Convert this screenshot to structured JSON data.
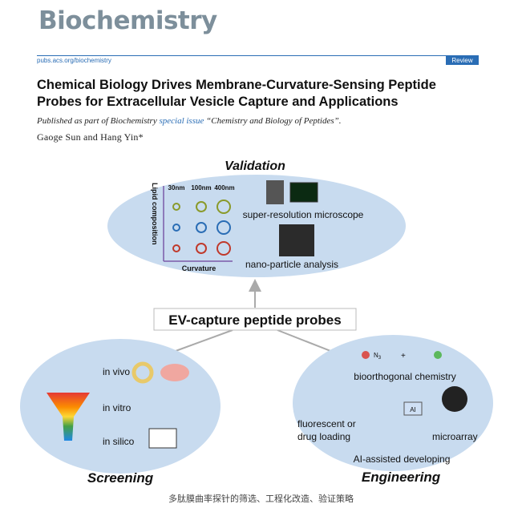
{
  "header": {
    "journal": "Biochemistry",
    "url": "pubs.acs.org/biochemistry",
    "badge": "Review"
  },
  "article": {
    "title": "Chemical Biology Drives Membrane-Curvature-Sensing Peptide Probes for Extracellular Vesicle Capture and Applications",
    "published_prefix": "Published as part of Biochemistry",
    "published_link": "special issue",
    "published_suffix": "“Chemistry and Biology of Peptides”.",
    "authors": "Gaoge Sun and Hang Yin*"
  },
  "figure": {
    "validation": {
      "title": "Validation",
      "y_axis": "Lipid composition",
      "sizes": [
        "30nm",
        "100nm",
        "400nm"
      ],
      "x_axis": "Curvature",
      "microscope": "super-resolution microscope",
      "nta": "nano-particle analysis"
    },
    "center": "EV-capture peptide probes",
    "screening": {
      "title": "Screening",
      "items": [
        "in vivo",
        "in vitro",
        "in silico"
      ]
    },
    "engineering": {
      "title": "Engineering",
      "azide": "N",
      "azide_sub": "3",
      "plus": "+",
      "bioorthogonal": "bioorthogonal chemistry",
      "loading_1": "fluorescent or",
      "loading_2": "drug loading",
      "ai": "AI",
      "microarray": "microarray",
      "ai_dev": "AI-assisted developing"
    }
  },
  "caption": "多肽膜曲率探针的筛选、工程化改造、验证策略"
}
